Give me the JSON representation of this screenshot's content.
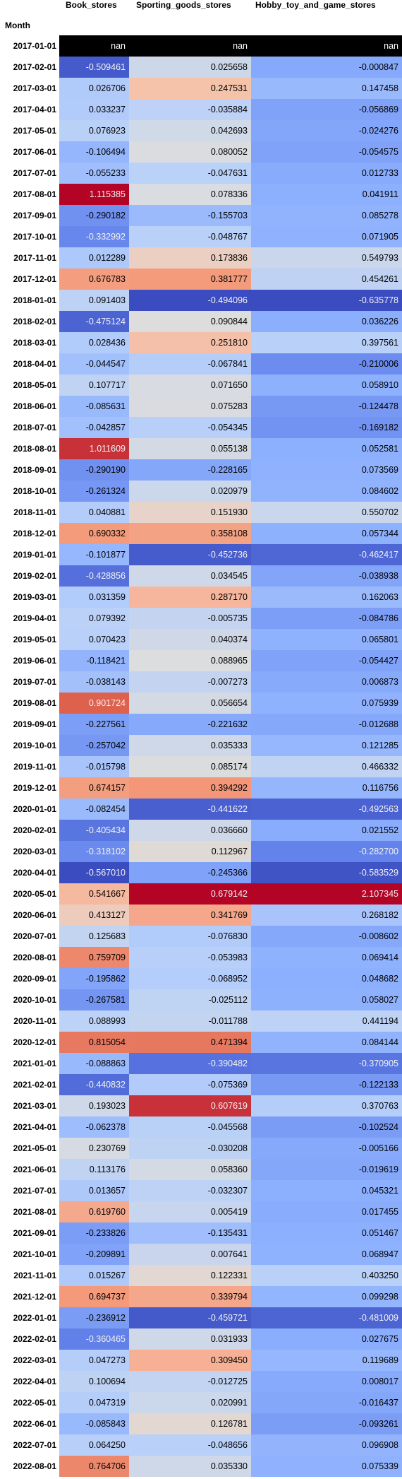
{
  "index_label": "Month",
  "columns": [
    "Book_stores",
    "Sporting_goods_stores",
    "Hobby_toy_and_game_stores"
  ],
  "chart_data": {
    "type": "heatmap",
    "colormap": "coolwarm",
    "columns": [
      "Book_stores",
      "Sporting_goods_stores",
      "Hobby_toy_and_game_stores"
    ],
    "rows": [
      {
        "month": "2017-01-01",
        "values": [
          null,
          null,
          null
        ],
        "labels": [
          "nan",
          "nan",
          "nan"
        ]
      },
      {
        "month": "2017-02-01",
        "values": [
          -0.509461,
          0.025658,
          -0.000847
        ],
        "labels": [
          "-0.509461",
          "0.025658",
          "-0.000847"
        ]
      },
      {
        "month": "2017-03-01",
        "values": [
          0.026706,
          0.247531,
          0.147458
        ],
        "labels": [
          "0.026706",
          "0.247531",
          "0.147458"
        ]
      },
      {
        "month": "2017-04-01",
        "values": [
          0.033237,
          -0.035884,
          -0.056869
        ],
        "labels": [
          "0.033237",
          "-0.035884",
          "-0.056869"
        ]
      },
      {
        "month": "2017-05-01",
        "values": [
          0.076923,
          0.042693,
          -0.024276
        ],
        "labels": [
          "0.076923",
          "0.042693",
          "-0.024276"
        ]
      },
      {
        "month": "2017-06-01",
        "values": [
          -0.106494,
          0.080052,
          -0.054575
        ],
        "labels": [
          "-0.106494",
          "0.080052",
          "-0.054575"
        ]
      },
      {
        "month": "2017-07-01",
        "values": [
          -0.055233,
          -0.047631,
          0.012733
        ],
        "labels": [
          "-0.055233",
          "-0.047631",
          "0.012733"
        ]
      },
      {
        "month": "2017-08-01",
        "values": [
          1.115385,
          0.078336,
          0.041911
        ],
        "labels": [
          "1.115385",
          "0.078336",
          "0.041911"
        ]
      },
      {
        "month": "2017-09-01",
        "values": [
          -0.290182,
          -0.155703,
          0.085278
        ],
        "labels": [
          "-0.290182",
          "-0.155703",
          "0.085278"
        ]
      },
      {
        "month": "2017-10-01",
        "values": [
          -0.332992,
          -0.048767,
          0.071905
        ],
        "labels": [
          "-0.332992",
          "-0.048767",
          "0.071905"
        ]
      },
      {
        "month": "2017-11-01",
        "values": [
          0.012289,
          0.173836,
          0.549793
        ],
        "labels": [
          "0.012289",
          "0.173836",
          "0.549793"
        ]
      },
      {
        "month": "2017-12-01",
        "values": [
          0.676783,
          0.381777,
          0.454261
        ],
        "labels": [
          "0.676783",
          "0.381777",
          "0.454261"
        ]
      },
      {
        "month": "2018-01-01",
        "values": [
          0.091403,
          -0.494096,
          -0.635778
        ],
        "labels": [
          "0.091403",
          "-0.494096",
          "-0.635778"
        ]
      },
      {
        "month": "2018-02-01",
        "values": [
          -0.475124,
          0.090844,
          0.036226
        ],
        "labels": [
          "-0.475124",
          "0.090844",
          "0.036226"
        ]
      },
      {
        "month": "2018-03-01",
        "values": [
          0.028436,
          0.25181,
          0.397561
        ],
        "labels": [
          "0.028436",
          "0.251810",
          "0.397561"
        ]
      },
      {
        "month": "2018-04-01",
        "values": [
          -0.044547,
          -0.067841,
          -0.210006
        ],
        "labels": [
          "-0.044547",
          "-0.067841",
          "-0.210006"
        ]
      },
      {
        "month": "2018-05-01",
        "values": [
          0.107717,
          0.07165,
          0.05891
        ],
        "labels": [
          "0.107717",
          "0.071650",
          "0.058910"
        ]
      },
      {
        "month": "2018-06-01",
        "values": [
          -0.085631,
          0.075283,
          -0.124478
        ],
        "labels": [
          "-0.085631",
          "0.075283",
          "-0.124478"
        ]
      },
      {
        "month": "2018-07-01",
        "values": [
          -0.042857,
          -0.054345,
          -0.169182
        ],
        "labels": [
          "-0.042857",
          "-0.054345",
          "-0.169182"
        ]
      },
      {
        "month": "2018-08-01",
        "values": [
          1.011609,
          0.055138,
          0.052581
        ],
        "labels": [
          "1.011609",
          "0.055138",
          "0.052581"
        ]
      },
      {
        "month": "2018-09-01",
        "values": [
          -0.29019,
          -0.228165,
          0.073569
        ],
        "labels": [
          "-0.290190",
          "-0.228165",
          "0.073569"
        ]
      },
      {
        "month": "2018-10-01",
        "values": [
          -0.261324,
          0.020979,
          0.084602
        ],
        "labels": [
          "-0.261324",
          "0.020979",
          "0.084602"
        ]
      },
      {
        "month": "2018-11-01",
        "values": [
          0.040881,
          0.15193,
          0.550702
        ],
        "labels": [
          "0.040881",
          "0.151930",
          "0.550702"
        ]
      },
      {
        "month": "2018-12-01",
        "values": [
          0.690332,
          0.358108,
          0.057344
        ],
        "labels": [
          "0.690332",
          "0.358108",
          "0.057344"
        ]
      },
      {
        "month": "2019-01-01",
        "values": [
          -0.101877,
          -0.452736,
          -0.462417
        ],
        "labels": [
          "-0.101877",
          "-0.452736",
          "-0.462417"
        ]
      },
      {
        "month": "2019-02-01",
        "values": [
          -0.428856,
          0.034545,
          -0.038938
        ],
        "labels": [
          "-0.428856",
          "0.034545",
          "-0.038938"
        ]
      },
      {
        "month": "2019-03-01",
        "values": [
          0.031359,
          0.28717,
          0.162063
        ],
        "labels": [
          "0.031359",
          "0.287170",
          "0.162063"
        ]
      },
      {
        "month": "2019-04-01",
        "values": [
          0.079392,
          -0.005735,
          -0.084786
        ],
        "labels": [
          "0.079392",
          "-0.005735",
          "-0.084786"
        ]
      },
      {
        "month": "2019-05-01",
        "values": [
          0.070423,
          0.040374,
          0.065801
        ],
        "labels": [
          "0.070423",
          "0.040374",
          "0.065801"
        ]
      },
      {
        "month": "2019-06-01",
        "values": [
          -0.118421,
          0.088965,
          -0.054427
        ],
        "labels": [
          "-0.118421",
          "0.088965",
          "-0.054427"
        ]
      },
      {
        "month": "2019-07-01",
        "values": [
          -0.038143,
          -0.007273,
          0.006873
        ],
        "labels": [
          "-0.038143",
          "-0.007273",
          "0.006873"
        ]
      },
      {
        "month": "2019-08-01",
        "values": [
          0.901724,
          0.056654,
          0.075939
        ],
        "labels": [
          "0.901724",
          "0.056654",
          "0.075939"
        ]
      },
      {
        "month": "2019-09-01",
        "values": [
          -0.227561,
          -0.221632,
          -0.012688
        ],
        "labels": [
          "-0.227561",
          "-0.221632",
          "-0.012688"
        ]
      },
      {
        "month": "2019-10-01",
        "values": [
          -0.257042,
          0.035333,
          0.121285
        ],
        "labels": [
          "-0.257042",
          "0.035333",
          "0.121285"
        ]
      },
      {
        "month": "2019-11-01",
        "values": [
          -0.015798,
          0.085174,
          0.466332
        ],
        "labels": [
          "-0.015798",
          "0.085174",
          "0.466332"
        ]
      },
      {
        "month": "2019-12-01",
        "values": [
          0.674157,
          0.394292,
          0.116756
        ],
        "labels": [
          "0.674157",
          "0.394292",
          "0.116756"
        ]
      },
      {
        "month": "2020-01-01",
        "values": [
          -0.082454,
          -0.441622,
          -0.492563
        ],
        "labels": [
          "-0.082454",
          "-0.441622",
          "-0.492563"
        ]
      },
      {
        "month": "2020-02-01",
        "values": [
          -0.405434,
          0.03666,
          0.021552
        ],
        "labels": [
          "-0.405434",
          "0.036660",
          "0.021552"
        ]
      },
      {
        "month": "2020-03-01",
        "values": [
          -0.318102,
          0.112967,
          -0.2827
        ],
        "labels": [
          "-0.318102",
          "0.112967",
          "-0.282700"
        ]
      },
      {
        "month": "2020-04-01",
        "values": [
          -0.56701,
          -0.245366,
          -0.583529
        ],
        "labels": [
          "-0.567010",
          "-0.245366",
          "-0.583529"
        ]
      },
      {
        "month": "2020-05-01",
        "values": [
          0.541667,
          0.679142,
          2.107345
        ],
        "labels": [
          "0.541667",
          "0.679142",
          "2.107345"
        ]
      },
      {
        "month": "2020-06-01",
        "values": [
          0.413127,
          0.341769,
          0.268182
        ],
        "labels": [
          "0.413127",
          "0.341769",
          "0.268182"
        ]
      },
      {
        "month": "2020-07-01",
        "values": [
          0.125683,
          -0.07683,
          -0.008602
        ],
        "labels": [
          "0.125683",
          "-0.076830",
          "-0.008602"
        ]
      },
      {
        "month": "2020-08-01",
        "values": [
          0.759709,
          -0.053983,
          0.069414
        ],
        "labels": [
          "0.759709",
          "-0.053983",
          "0.069414"
        ]
      },
      {
        "month": "2020-09-01",
        "values": [
          -0.195862,
          -0.068952,
          0.048682
        ],
        "labels": [
          "-0.195862",
          "-0.068952",
          "0.048682"
        ]
      },
      {
        "month": "2020-10-01",
        "values": [
          -0.267581,
          -0.025112,
          0.058027
        ],
        "labels": [
          "-0.267581",
          "-0.025112",
          "0.058027"
        ]
      },
      {
        "month": "2020-11-01",
        "values": [
          0.088993,
          -0.011788,
          0.441194
        ],
        "labels": [
          "0.088993",
          "-0.011788",
          "0.441194"
        ]
      },
      {
        "month": "2020-12-01",
        "values": [
          0.815054,
          0.471394,
          0.084144
        ],
        "labels": [
          "0.815054",
          "0.471394",
          "0.084144"
        ]
      },
      {
        "month": "2021-01-01",
        "values": [
          -0.088863,
          -0.390482,
          -0.370905
        ],
        "labels": [
          "-0.088863",
          "-0.390482",
          "-0.370905"
        ]
      },
      {
        "month": "2021-02-01",
        "values": [
          -0.440832,
          -0.075369,
          -0.122133
        ],
        "labels": [
          "-0.440832",
          "-0.075369",
          "-0.122133"
        ]
      },
      {
        "month": "2021-03-01",
        "values": [
          0.193023,
          0.607619,
          0.370763
        ],
        "labels": [
          "0.193023",
          "0.607619",
          "0.370763"
        ]
      },
      {
        "month": "2021-04-01",
        "values": [
          -0.062378,
          -0.045568,
          -0.102524
        ],
        "labels": [
          "-0.062378",
          "-0.045568",
          "-0.102524"
        ]
      },
      {
        "month": "2021-05-01",
        "values": [
          0.230769,
          -0.030208,
          -0.005166
        ],
        "labels": [
          "0.230769",
          "-0.030208",
          "-0.005166"
        ]
      },
      {
        "month": "2021-06-01",
        "values": [
          0.113176,
          0.05836,
          -0.019619
        ],
        "labels": [
          "0.113176",
          "0.058360",
          "-0.019619"
        ]
      },
      {
        "month": "2021-07-01",
        "values": [
          0.013657,
          -0.032307,
          0.045321
        ],
        "labels": [
          "0.013657",
          "-0.032307",
          "0.045321"
        ]
      },
      {
        "month": "2021-08-01",
        "values": [
          0.61976,
          0.005419,
          0.017455
        ],
        "labels": [
          "0.619760",
          "0.005419",
          "0.017455"
        ]
      },
      {
        "month": "2021-09-01",
        "values": [
          -0.233826,
          -0.135431,
          0.051467
        ],
        "labels": [
          "-0.233826",
          "-0.135431",
          "0.051467"
        ]
      },
      {
        "month": "2021-10-01",
        "values": [
          -0.209891,
          0.007641,
          0.068947
        ],
        "labels": [
          "-0.209891",
          "0.007641",
          "0.068947"
        ]
      },
      {
        "month": "2021-11-01",
        "values": [
          0.015267,
          0.122331,
          0.40325
        ],
        "labels": [
          "0.015267",
          "0.122331",
          "0.403250"
        ]
      },
      {
        "month": "2021-12-01",
        "values": [
          0.694737,
          0.339794,
          0.099298
        ],
        "labels": [
          "0.694737",
          "0.339794",
          "0.099298"
        ]
      },
      {
        "month": "2022-01-01",
        "values": [
          -0.236912,
          -0.459721,
          -0.481009
        ],
        "labels": [
          "-0.236912",
          "-0.459721",
          "-0.481009"
        ]
      },
      {
        "month": "2022-02-01",
        "values": [
          -0.360465,
          0.031933,
          0.027675
        ],
        "labels": [
          "-0.360465",
          "0.031933",
          "0.027675"
        ]
      },
      {
        "month": "2022-03-01",
        "values": [
          0.047273,
          0.30945,
          0.119689
        ],
        "labels": [
          "0.047273",
          "0.309450",
          "0.119689"
        ]
      },
      {
        "month": "2022-04-01",
        "values": [
          0.100694,
          -0.012725,
          0.008017
        ],
        "labels": [
          "0.100694",
          "-0.012725",
          "0.008017"
        ]
      },
      {
        "month": "2022-05-01",
        "values": [
          0.047319,
          0.020991,
          -0.016437
        ],
        "labels": [
          "0.047319",
          "0.020991",
          "-0.016437"
        ]
      },
      {
        "month": "2022-06-01",
        "values": [
          -0.085843,
          0.126781,
          -0.093261
        ],
        "labels": [
          "-0.085843",
          "0.126781",
          "-0.093261"
        ]
      },
      {
        "month": "2022-07-01",
        "values": [
          0.06425,
          -0.048656,
          0.096908
        ],
        "labels": [
          "0.064250",
          "-0.048656",
          "0.096908"
        ]
      },
      {
        "month": "2022-08-01",
        "values": [
          0.764706,
          0.03533,
          0.075339
        ],
        "labels": [
          "0.764706",
          "0.035330",
          "0.075339"
        ]
      }
    ]
  }
}
